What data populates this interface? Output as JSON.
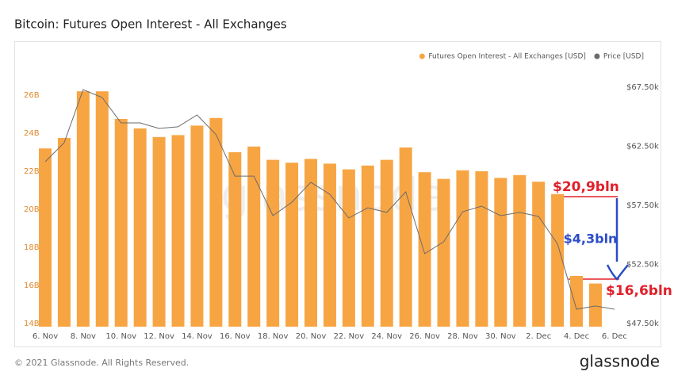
{
  "chart_data": {
    "type": "bar",
    "title": "Bitcoin: Futures Open Interest - All Exchanges",
    "categories": [
      "6. Nov",
      null,
      "8. Nov",
      null,
      "10. Nov",
      null,
      "12. Nov",
      null,
      "14. Nov",
      null,
      "16. Nov",
      null,
      "18. Nov",
      null,
      "20. Nov",
      null,
      "22. Nov",
      null,
      "24. Nov",
      null,
      "26. Nov",
      null,
      "28. Nov",
      null,
      "30. Nov",
      null,
      "2. Dec",
      null,
      "4. Dec",
      null,
      "6. Dec"
    ],
    "series": [
      {
        "name": "Futures Open Interest - All Exchanges [USD]",
        "color": "#f7a543",
        "type": "bar",
        "values": [
          23.2,
          23.75,
          26.2,
          26.2,
          24.75,
          24.25,
          23.8,
          23.9,
          24.4,
          24.8,
          23.0,
          23.3,
          22.6,
          22.45,
          22.65,
          22.4,
          22.1,
          22.3,
          22.6,
          23.25,
          21.95,
          21.6,
          22.05,
          22.0,
          21.65,
          21.8,
          21.45,
          20.8,
          16.5,
          16.1,
          null
        ]
      },
      {
        "name": "Price [USD]",
        "color": "#6b6b6b",
        "type": "line",
        "axis": "y2",
        "values": [
          61190,
          62800,
          67300,
          66630,
          64480,
          64480,
          64010,
          64150,
          65150,
          63500,
          59980,
          59980,
          56630,
          57770,
          59450,
          58440,
          56430,
          57300,
          56900,
          58640,
          53410,
          54410,
          56960,
          57430,
          56630,
          56900,
          56560,
          54240,
          48710,
          48980,
          48710
        ]
      }
    ],
    "ylim": [
      14,
      27
    ],
    "yticks": [
      {
        "value": 14,
        "label": "14B"
      },
      {
        "value": 16,
        "label": "16B"
      },
      {
        "value": 18,
        "label": "18B"
      },
      {
        "value": 20,
        "label": "20B"
      },
      {
        "value": 22,
        "label": "22B"
      },
      {
        "value": 24,
        "label": "24B"
      },
      {
        "value": 26,
        "label": "26B"
      }
    ],
    "y2lim": [
      47500,
      68440
    ],
    "y2ticks": [
      {
        "value": 47500,
        "label": "$47.50k"
      },
      {
        "value": 52500,
        "label": "$52.50k"
      },
      {
        "value": 57500,
        "label": "$57.50k"
      },
      {
        "value": 62500,
        "label": "$62.50k"
      },
      {
        "value": 67500,
        "label": "$67.50k"
      }
    ],
    "grid": false,
    "legend": "top-right",
    "annotations": [
      "$20,9bln",
      "-$4,3bln",
      "$16,6bln"
    ],
    "watermark": "glassnode",
    "footer": "© 2021 Glassnode. All Rights Reserved.",
    "logo": "glassnode"
  }
}
